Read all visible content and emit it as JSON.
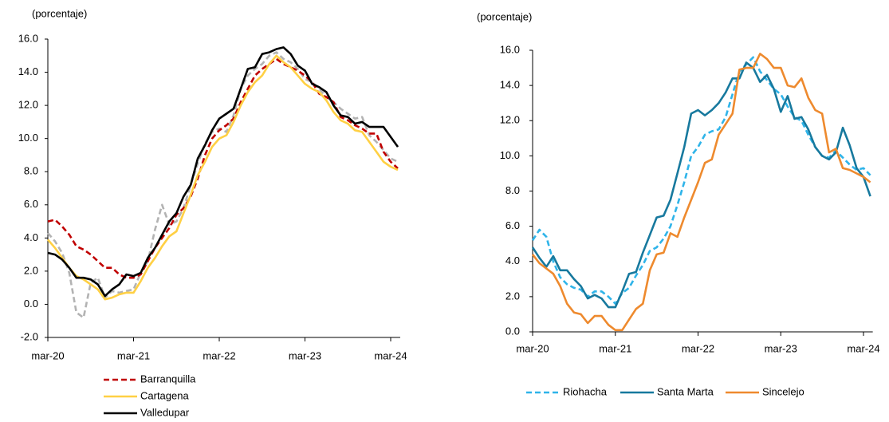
{
  "chart_data": [
    {
      "type": "line",
      "y_label": "(porcentaje)",
      "categories": [
        "mar-20",
        null,
        null,
        null,
        null,
        null,
        null,
        null,
        null,
        null,
        null,
        null,
        "mar-21",
        null,
        null,
        null,
        null,
        null,
        null,
        null,
        null,
        null,
        null,
        null,
        "mar-22",
        null,
        null,
        null,
        null,
        null,
        null,
        null,
        null,
        null,
        null,
        null,
        "mar-23",
        null,
        null,
        null,
        null,
        null,
        null,
        null,
        null,
        null,
        null,
        null,
        "mar-24",
        null
      ],
      "ylim": [
        -2,
        16
      ],
      "yticks": [
        {
          "value": -2,
          "label": "-2.0"
        },
        {
          "value": 0,
          "label": "0.0"
        },
        {
          "value": 2,
          "label": "2.0"
        },
        {
          "value": 4,
          "label": "4.0"
        },
        {
          "value": 6,
          "label": "6.0"
        },
        {
          "value": 8,
          "label": "8.0"
        },
        {
          "value": 10,
          "label": "10.0"
        },
        {
          "value": 12,
          "label": "12.0"
        },
        {
          "value": 14,
          "label": "14.0"
        },
        {
          "value": 16,
          "label": "16.0"
        }
      ],
      "legend": "bottom",
      "series": [
        {
          "color": "#b3b3b3",
          "style": "dashed",
          "values": [
            4.3,
            3.8,
            3.1,
            1.9,
            -0.5,
            -0.8,
            1.3,
            1.6,
            0.4,
            0.8,
            0.7,
            0.8,
            0.9,
            1.9,
            2.6,
            4.5,
            6.0,
            4.8,
            5.0,
            5.8,
            7.2,
            8.5,
            9.7,
            10.4,
            10.6,
            10.4,
            11.4,
            13.0,
            13.8,
            14.2,
            14.5,
            15.0,
            15.2,
            14.8,
            14.6,
            14.2,
            13.6,
            13.4,
            13.0,
            12.5,
            12.2,
            11.8,
            11.5,
            11.2,
            11.3,
            10.2,
            9.8,
            9.3,
            8.8,
            8.6
          ]
        },
        {
          "name": "Barranquilla",
          "color": "#c00000",
          "style": "dashed",
          "values": [
            5.0,
            5.1,
            4.7,
            4.2,
            3.5,
            3.3,
            3.0,
            2.6,
            2.2,
            2.2,
            1.8,
            1.6,
            1.6,
            1.8,
            2.6,
            3.4,
            4.0,
            4.6,
            5.4,
            5.8,
            6.5,
            7.6,
            9.0,
            10.0,
            10.5,
            10.8,
            11.2,
            12.2,
            13.0,
            13.8,
            14.2,
            14.5,
            14.8,
            14.5,
            14.3,
            14.1,
            13.8,
            13.4,
            12.7,
            12.5,
            12.2,
            11.3,
            11.1,
            10.8,
            10.6,
            10.3,
            10.3,
            9.2,
            8.6,
            8.2
          ]
        },
        {
          "name": "Cartagena",
          "color": "#ffd044",
          "style": "solid",
          "values": [
            3.9,
            3.4,
            2.8,
            2.2,
            1.7,
            1.5,
            1.2,
            0.9,
            0.3,
            0.4,
            0.6,
            0.7,
            0.7,
            1.4,
            2.2,
            2.8,
            3.5,
            4.1,
            4.4,
            5.5,
            6.6,
            7.8,
            8.6,
            9.5,
            10.0,
            10.2,
            11.0,
            12.0,
            12.8,
            13.4,
            13.8,
            14.5,
            15.0,
            14.6,
            14.3,
            13.8,
            13.3,
            13.0,
            12.8,
            12.3,
            11.6,
            11.1,
            10.9,
            10.5,
            10.4,
            9.8,
            9.2,
            8.6,
            8.3,
            8.1
          ]
        },
        {
          "name": "Valledupar",
          "color": "#000000",
          "style": "solid",
          "values": [
            3.1,
            3.0,
            2.7,
            2.2,
            1.6,
            1.6,
            1.5,
            1.2,
            0.5,
            0.9,
            1.2,
            1.8,
            1.7,
            1.9,
            2.8,
            3.4,
            4.2,
            5.0,
            5.5,
            6.5,
            7.2,
            8.8,
            9.6,
            10.5,
            11.2,
            11.5,
            11.8,
            13.0,
            14.2,
            14.3,
            15.1,
            15.2,
            15.4,
            15.5,
            15.1,
            14.4,
            14.1,
            13.3,
            13.1,
            12.8,
            12.0,
            11.4,
            11.3,
            10.9,
            11.0,
            10.7,
            10.7,
            10.7,
            10.1,
            9.5
          ]
        }
      ]
    },
    {
      "type": "line",
      "y_label": "(porcentaje)",
      "categories": [
        "mar-20",
        null,
        null,
        null,
        null,
        null,
        null,
        null,
        null,
        null,
        null,
        null,
        "mar-21",
        null,
        null,
        null,
        null,
        null,
        null,
        null,
        null,
        null,
        null,
        null,
        "mar-22",
        null,
        null,
        null,
        null,
        null,
        null,
        null,
        null,
        null,
        null,
        null,
        "mar-23",
        null,
        null,
        null,
        null,
        null,
        null,
        null,
        null,
        null,
        null,
        null,
        "mar-24",
        null
      ],
      "ylim": [
        0,
        16
      ],
      "yticks": [
        {
          "value": 0,
          "label": "0.0"
        },
        {
          "value": 2,
          "label": "2.0"
        },
        {
          "value": 4,
          "label": "4.0"
        },
        {
          "value": 6,
          "label": "6.0"
        },
        {
          "value": 8,
          "label": "8.0"
        },
        {
          "value": 10,
          "label": "10.0"
        },
        {
          "value": 12,
          "label": "12.0"
        },
        {
          "value": 14,
          "label": "14.0"
        },
        {
          "value": 16,
          "label": "16.0"
        }
      ],
      "legend": "bottom",
      "series": [
        {
          "name": "Riohacha",
          "color": "#2fb4e9",
          "style": "dashed",
          "values": [
            5.2,
            5.8,
            5.4,
            4.0,
            3.1,
            2.7,
            2.5,
            2.4,
            2.0,
            2.3,
            2.3,
            2.0,
            1.6,
            2.2,
            2.5,
            3.2,
            3.8,
            4.6,
            4.8,
            5.3,
            6.0,
            7.2,
            8.5,
            10.0,
            10.5,
            11.2,
            11.4,
            11.5,
            12.2,
            13.5,
            14.8,
            15.2,
            15.6,
            14.8,
            14.3,
            13.8,
            13.5,
            12.8,
            12.2,
            12.0,
            11.2,
            10.5,
            10.0,
            9.9,
            10.3,
            9.9,
            9.5,
            9.2,
            9.3,
            8.9
          ]
        },
        {
          "name": "Santa Marta",
          "color": "#17799e",
          "style": "solid",
          "values": [
            4.8,
            4.2,
            3.7,
            4.3,
            3.5,
            3.5,
            3.0,
            2.6,
            1.9,
            2.1,
            1.9,
            1.4,
            1.4,
            2.3,
            3.3,
            3.4,
            4.5,
            5.5,
            6.5,
            6.6,
            7.5,
            9.0,
            10.5,
            12.4,
            12.6,
            12.3,
            12.6,
            13.0,
            13.6,
            14.4,
            14.4,
            15.3,
            15.0,
            14.2,
            14.6,
            13.8,
            12.5,
            13.4,
            12.1,
            12.2,
            11.5,
            10.5,
            10.0,
            9.8,
            10.2,
            11.6,
            10.6,
            9.3,
            8.8,
            7.7
          ]
        },
        {
          "name": "Sincelejo",
          "color": "#ee8a2e",
          "style": "solid",
          "values": [
            4.4,
            3.9,
            3.6,
            3.3,
            2.6,
            1.6,
            1.1,
            1.0,
            0.5,
            0.9,
            0.9,
            0.4,
            0.1,
            0.1,
            0.7,
            1.3,
            1.6,
            3.5,
            4.4,
            4.5,
            5.6,
            5.4,
            6.5,
            7.5,
            8.5,
            9.6,
            9.8,
            11.2,
            11.8,
            12.4,
            14.9,
            15.0,
            15.0,
            15.8,
            15.5,
            15.0,
            15.0,
            14.0,
            13.9,
            14.4,
            13.3,
            12.6,
            12.4,
            10.2,
            10.4,
            9.3,
            9.2,
            9.0,
            8.8,
            8.5
          ]
        }
      ]
    }
  ]
}
